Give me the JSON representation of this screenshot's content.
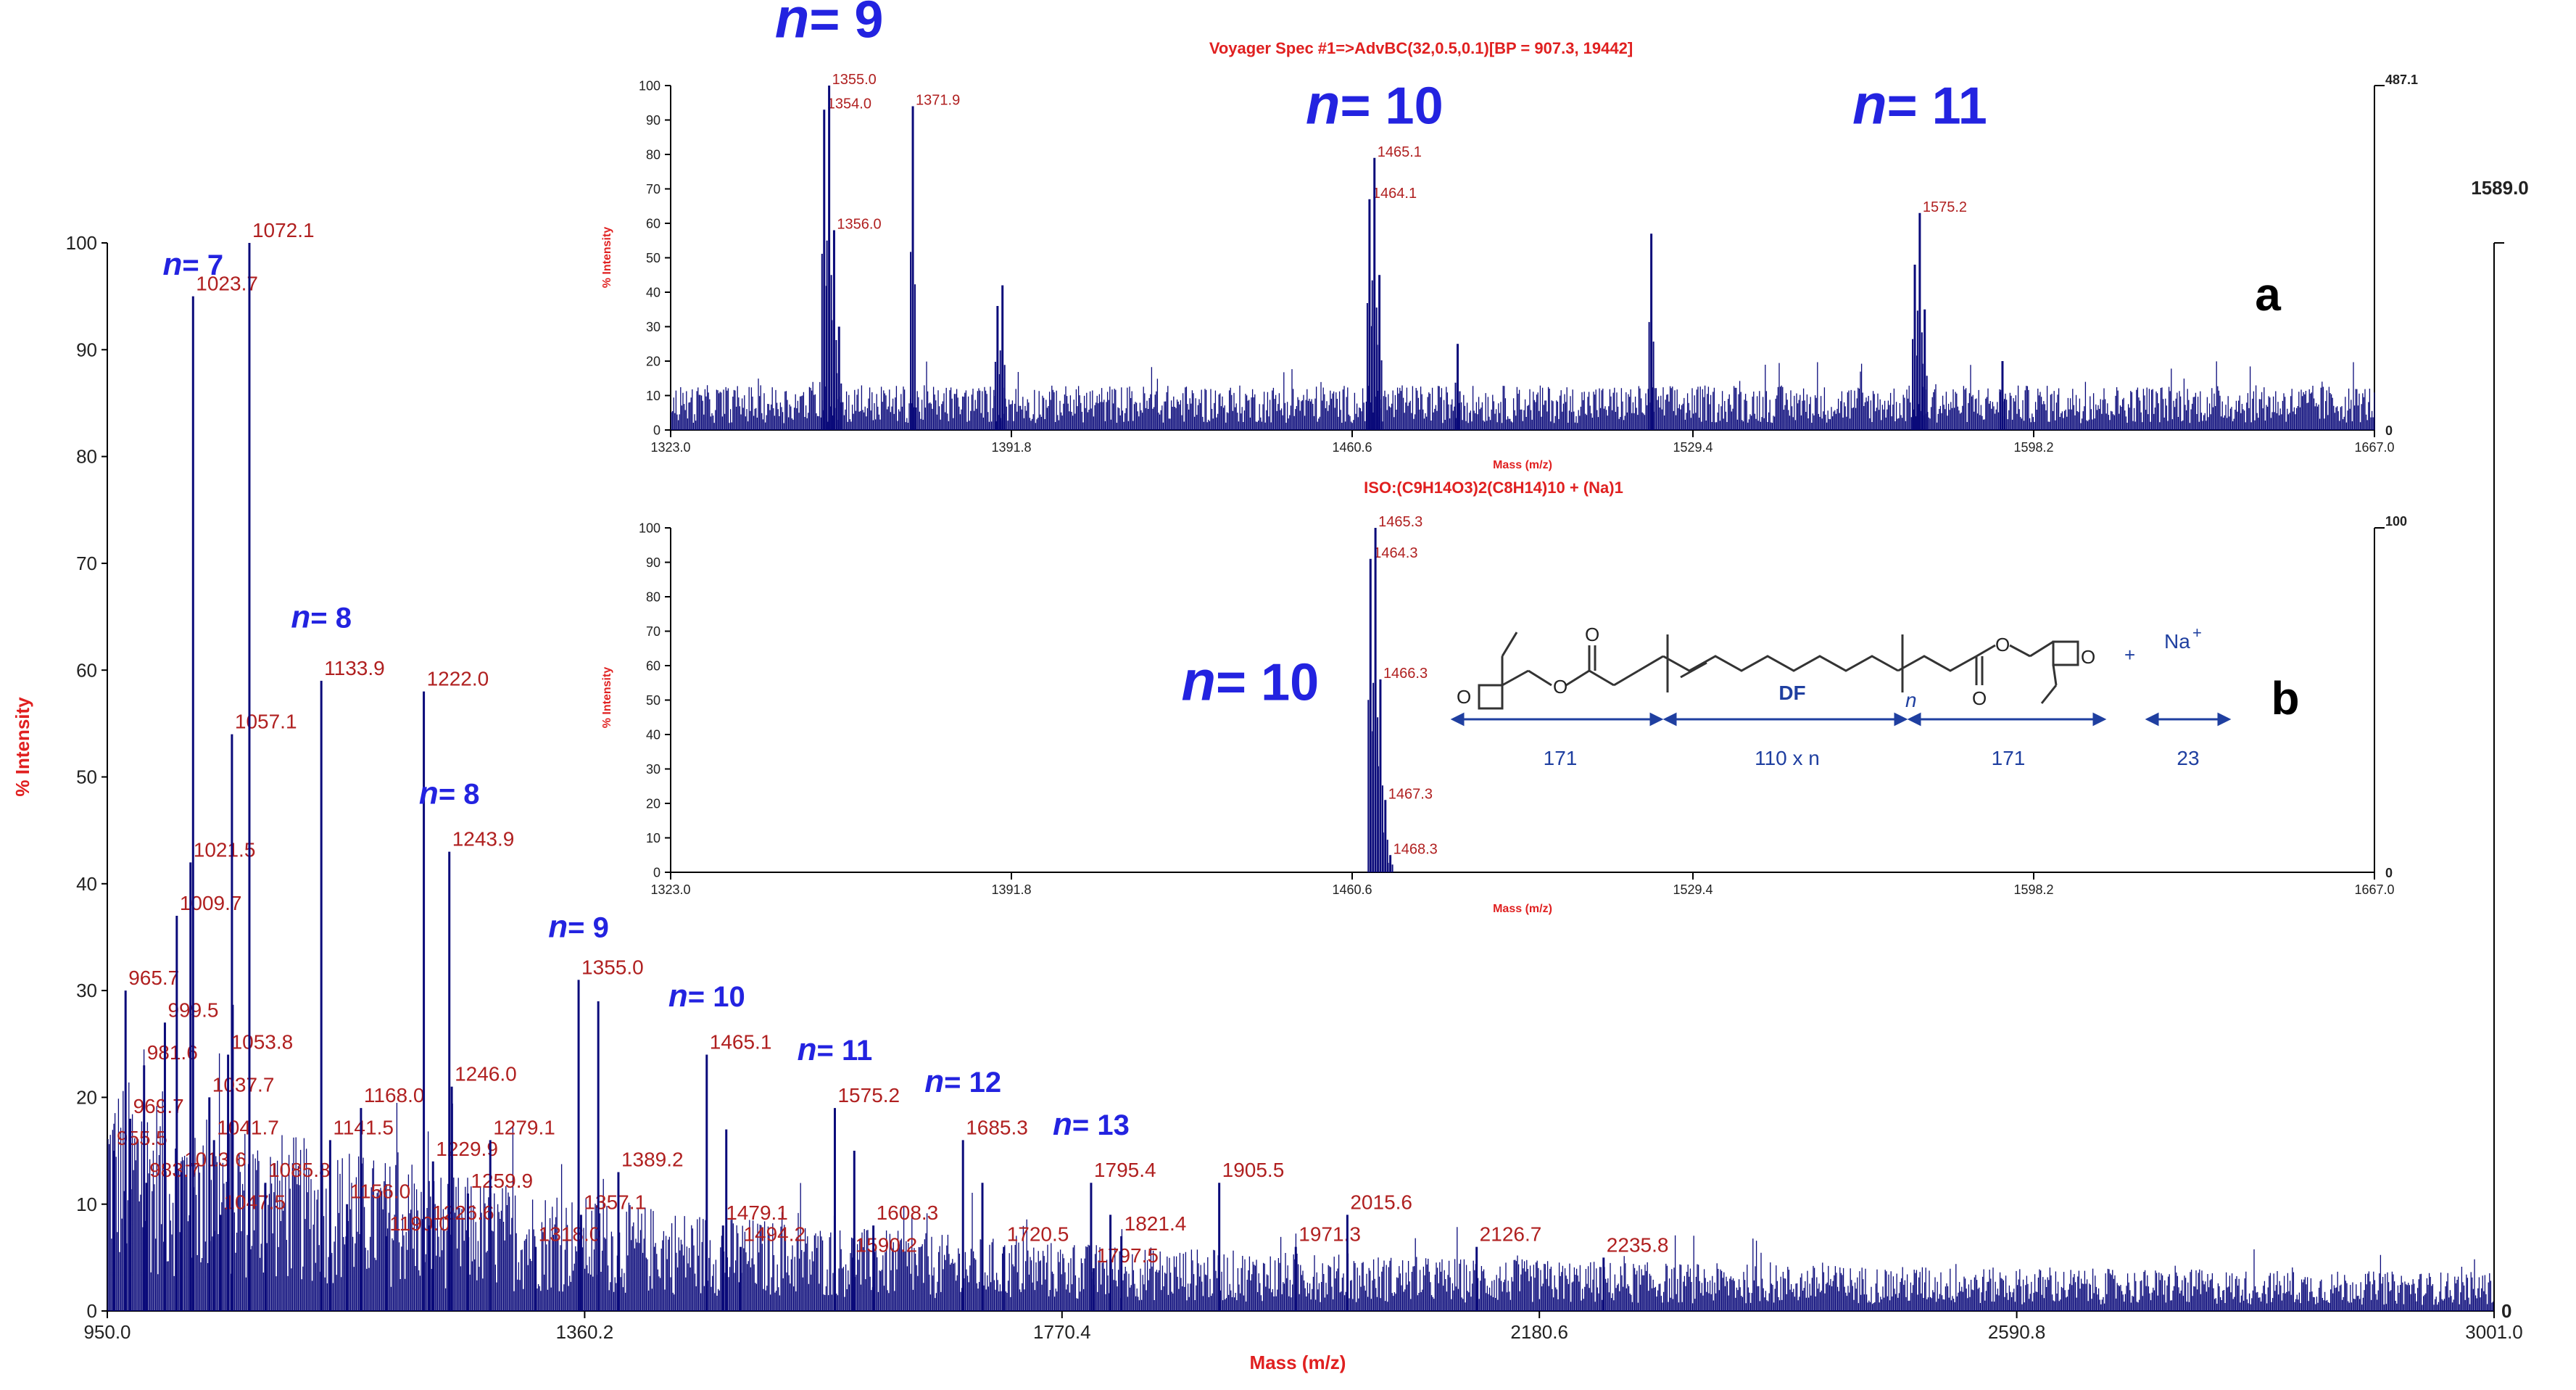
{
  "chart_data": [
    {
      "id": "main",
      "type": "line",
      "title": "",
      "xlabel": "Mass (m/z)",
      "ylabel": "% Intensity",
      "xlim": [
        950.0,
        3001.0
      ],
      "ylim": [
        0,
        100
      ],
      "x_ticks": [
        "950.0",
        "1360.2",
        "1770.4",
        "2180.6",
        "2590.8",
        "3001.0"
      ],
      "y_ticks": [
        "0",
        "10",
        "20",
        "30",
        "40",
        "50",
        "60",
        "70",
        "80",
        "90",
        "100"
      ],
      "right_axis_max": "1589.0",
      "right_axis_min": "0",
      "series": [
        {
          "name": "spectrum",
          "peaks": [
            {
              "x": 955.5,
              "y": 15,
              "label": "955.5"
            },
            {
              "x": 965.7,
              "y": 30,
              "label": "965.7"
            },
            {
              "x": 969.7,
              "y": 18,
              "label": "969.7"
            },
            {
              "x": 983.7,
              "y": 12,
              "label": "983.7"
            },
            {
              "x": 981.6,
              "y": 23,
              "label": "981.6"
            },
            {
              "x": 999.5,
              "y": 27,
              "label": "999.5"
            },
            {
              "x": 1009.7,
              "y": 37,
              "label": "1009.7"
            },
            {
              "x": 1013.6,
              "y": 13,
              "label": "1013.6"
            },
            {
              "x": 1021.5,
              "y": 42,
              "label": "1021.5"
            },
            {
              "x": 1023.7,
              "y": 95,
              "label": "1023.7"
            },
            {
              "x": 1037.7,
              "y": 20,
              "label": "1037.7"
            },
            {
              "x": 1041.7,
              "y": 16,
              "label": "1041.7"
            },
            {
              "x": 1047.5,
              "y": 9,
              "label": "1047.5"
            },
            {
              "x": 1053.8,
              "y": 24,
              "label": "1053.8"
            },
            {
              "x": 1057.1,
              "y": 54,
              "label": "1057.1"
            },
            {
              "x": 1072.1,
              "y": 100,
              "label": "1072.1"
            },
            {
              "x": 1085.8,
              "y": 12,
              "label": "1085.8"
            },
            {
              "x": 1133.9,
              "y": 59,
              "label": "1133.9"
            },
            {
              "x": 1141.5,
              "y": 16,
              "label": "1141.5"
            },
            {
              "x": 1156.0,
              "y": 10,
              "label": "1156.0"
            },
            {
              "x": 1168.0,
              "y": 19,
              "label": "1168.0"
            },
            {
              "x": 1190.0,
              "y": 7,
              "label": "1190.0"
            },
            {
              "x": 1222.0,
              "y": 58,
              "label": "1222.0"
            },
            {
              "x": 1226.6,
              "y": 8,
              "label": "1226.6"
            },
            {
              "x": 1229.9,
              "y": 14,
              "label": "1229.9"
            },
            {
              "x": 1243.9,
              "y": 43,
              "label": "1243.9"
            },
            {
              "x": 1246.0,
              "y": 21,
              "label": "1246.0"
            },
            {
              "x": 1259.9,
              "y": 11,
              "label": "1259.9"
            },
            {
              "x": 1279.1,
              "y": 16,
              "label": "1279.1"
            },
            {
              "x": 1318.0,
              "y": 6,
              "label": "1318.0"
            },
            {
              "x": 1355.0,
              "y": 31,
              "label": "1355.0"
            },
            {
              "x": 1357.1,
              "y": 9,
              "label": "1357.1"
            },
            {
              "x": 1371.9,
              "y": 29,
              "label": ""
            },
            {
              "x": 1389.2,
              "y": 13,
              "label": "1389.2"
            },
            {
              "x": 1465.1,
              "y": 24,
              "label": "1465.1"
            },
            {
              "x": 1479.1,
              "y": 8,
              "label": "1479.1"
            },
            {
              "x": 1481.9,
              "y": 17,
              "label": ""
            },
            {
              "x": 1494.2,
              "y": 6,
              "label": "1494.2"
            },
            {
              "x": 1575.2,
              "y": 19,
              "label": "1575.2"
            },
            {
              "x": 1590.2,
              "y": 5,
              "label": "1590.2"
            },
            {
              "x": 1591.9,
              "y": 15,
              "label": ""
            },
            {
              "x": 1608.3,
              "y": 8,
              "label": "1608.3"
            },
            {
              "x": 1685.3,
              "y": 16,
              "label": "1685.3"
            },
            {
              "x": 1702.0,
              "y": 12,
              "label": ""
            },
            {
              "x": 1720.5,
              "y": 6,
              "label": "1720.5"
            },
            {
              "x": 1795.4,
              "y": 12,
              "label": "1795.4"
            },
            {
              "x": 1797.5,
              "y": 4,
              "label": "1797.5"
            },
            {
              "x": 1812.0,
              "y": 9,
              "label": ""
            },
            {
              "x": 1821.4,
              "y": 7,
              "label": "1821.4"
            },
            {
              "x": 1905.5,
              "y": 12,
              "label": "1905.5"
            },
            {
              "x": 1971.3,
              "y": 6,
              "label": "1971.3"
            },
            {
              "x": 2015.6,
              "y": 9,
              "label": "2015.6"
            },
            {
              "x": 2126.7,
              "y": 6,
              "label": "2126.7"
            },
            {
              "x": 2235.8,
              "y": 5,
              "label": "2235.8"
            }
          ]
        }
      ],
      "annotations": [
        {
          "text": "n",
          "num": "= 7",
          "x": 1023.7,
          "y": 97
        },
        {
          "text": "n",
          "num": "= 8",
          "x": 1133.9,
          "y": 64
        },
        {
          "text": "n",
          "num": "= 8",
          "x": 1243.9,
          "y": 47.5
        },
        {
          "text": "n",
          "num": "= 9",
          "x": 1355.0,
          "y": 35
        },
        {
          "text": "n",
          "num": "= 10",
          "x": 1465.1,
          "y": 28.5
        },
        {
          "text": "n",
          "num": "= 11",
          "x": 1575.2,
          "y": 23.5
        },
        {
          "text": "n",
          "num": "= 12",
          "x": 1685.3,
          "y": 20.5
        },
        {
          "text": "n",
          "num": "= 13",
          "x": 1795.4,
          "y": 16.5
        }
      ]
    },
    {
      "id": "inset_a",
      "type": "line",
      "title": "Voyager Spec #1=>AdvBC(32,0.5,0.1)[BP = 907.3, 19442]",
      "panel_label": "a",
      "xlabel": "Mass (m/z)",
      "ylabel": "% Intensity",
      "xlim": [
        1323.0,
        1667.0
      ],
      "ylim": [
        0,
        100
      ],
      "x_ticks": [
        "1323.0",
        "1391.8",
        "1460.6",
        "1529.4",
        "1598.2",
        "1667.0"
      ],
      "y_ticks": [
        "0",
        "10",
        "20",
        "30",
        "40",
        "50",
        "60",
        "70",
        "80",
        "90",
        "100"
      ],
      "right_axis_max": "487.1",
      "right_axis_min": "0",
      "series": [
        {
          "name": "spectrum",
          "peaks": [
            {
              "x": 1354.0,
              "y": 93,
              "label": "1354.0"
            },
            {
              "x": 1355.0,
              "y": 100,
              "label": "1355.0"
            },
            {
              "x": 1356.0,
              "y": 58,
              "label": "1356.0"
            },
            {
              "x": 1357.0,
              "y": 30,
              "label": ""
            },
            {
              "x": 1371.9,
              "y": 94,
              "label": "1371.9"
            },
            {
              "x": 1389.0,
              "y": 36,
              "label": ""
            },
            {
              "x": 1390.0,
              "y": 42,
              "label": ""
            },
            {
              "x": 1464.1,
              "y": 67,
              "label": "1464.1"
            },
            {
              "x": 1465.1,
              "y": 79,
              "label": "1465.1"
            },
            {
              "x": 1466.1,
              "y": 45,
              "label": ""
            },
            {
              "x": 1481.9,
              "y": 25,
              "label": ""
            },
            {
              "x": 1521.0,
              "y": 57,
              "label": ""
            },
            {
              "x": 1574.2,
              "y": 48,
              "label": ""
            },
            {
              "x": 1575.2,
              "y": 63,
              "label": "1575.2"
            },
            {
              "x": 1576.2,
              "y": 35,
              "label": ""
            },
            {
              "x": 1591.9,
              "y": 20,
              "label": ""
            }
          ]
        }
      ],
      "annotations": [
        {
          "text": "n",
          "num": "= 9",
          "x": 1355.0,
          "y": 114
        },
        {
          "text": "n",
          "num": "= 10",
          "x": 1465.1,
          "y": 89
        },
        {
          "text": "n",
          "num": "= 11",
          "x": 1575.2,
          "y": 89
        }
      ]
    },
    {
      "id": "inset_b",
      "type": "bar",
      "title": "ISO:(C9H14O3)2(C8H14)10 + (Na)1",
      "panel_label": "b",
      "xlabel": "Mass (m/z)",
      "ylabel": "% Intensity",
      "xlim": [
        1323.0,
        1667.0
      ],
      "ylim": [
        0,
        100
      ],
      "x_ticks": [
        "1323.0",
        "1391.8",
        "1460.6",
        "1529.4",
        "1598.2",
        "1667.0"
      ],
      "y_ticks": [
        "0",
        "10",
        "20",
        "30",
        "40",
        "50",
        "60",
        "70",
        "80",
        "90",
        "100"
      ],
      "right_axis_max": "100",
      "right_axis_min": "0",
      "series": [
        {
          "name": "isotope pattern",
          "peaks": [
            {
              "x": 1464.3,
              "y": 91,
              "label": "1464.3"
            },
            {
              "x": 1465.3,
              "y": 100,
              "label": "1465.3"
            },
            {
              "x": 1466.3,
              "y": 56,
              "label": "1466.3"
            },
            {
              "x": 1467.3,
              "y": 21,
              "label": "1467.3"
            },
            {
              "x": 1468.3,
              "y": 5,
              "label": "1468.3"
            }
          ]
        }
      ],
      "annotations": [
        {
          "text": "n",
          "num": "= 10",
          "x": 1440.0,
          "y": 50
        }
      ]
    }
  ],
  "structure": {
    "df_label": "DF",
    "repeat_label": "n",
    "cation": "Na",
    "cation_charge": "+",
    "plus_sign": "+",
    "segments": [
      "171",
      "110 x n",
      "171",
      "23"
    ]
  }
}
